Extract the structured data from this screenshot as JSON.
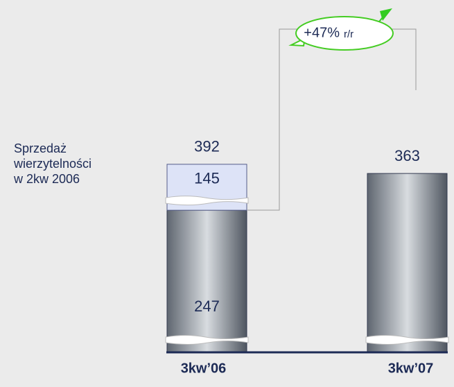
{
  "chart_data": {
    "type": "stacked-bar",
    "categories": [
      "3kw’06",
      "3kw’07"
    ],
    "series": [
      {
        "color": "#8e949c",
        "values": [
          247,
          363
        ]
      },
      {
        "name": "Sprzedaż wierzytelności w 2kw 2006",
        "color": "#dde3f7",
        "values": [
          145,
          null
        ]
      }
    ],
    "totals": [
      392,
      363
    ],
    "change": {
      "value": 47,
      "label": "+47%",
      "unit": "r/r"
    },
    "broken_axis": true
  }
}
